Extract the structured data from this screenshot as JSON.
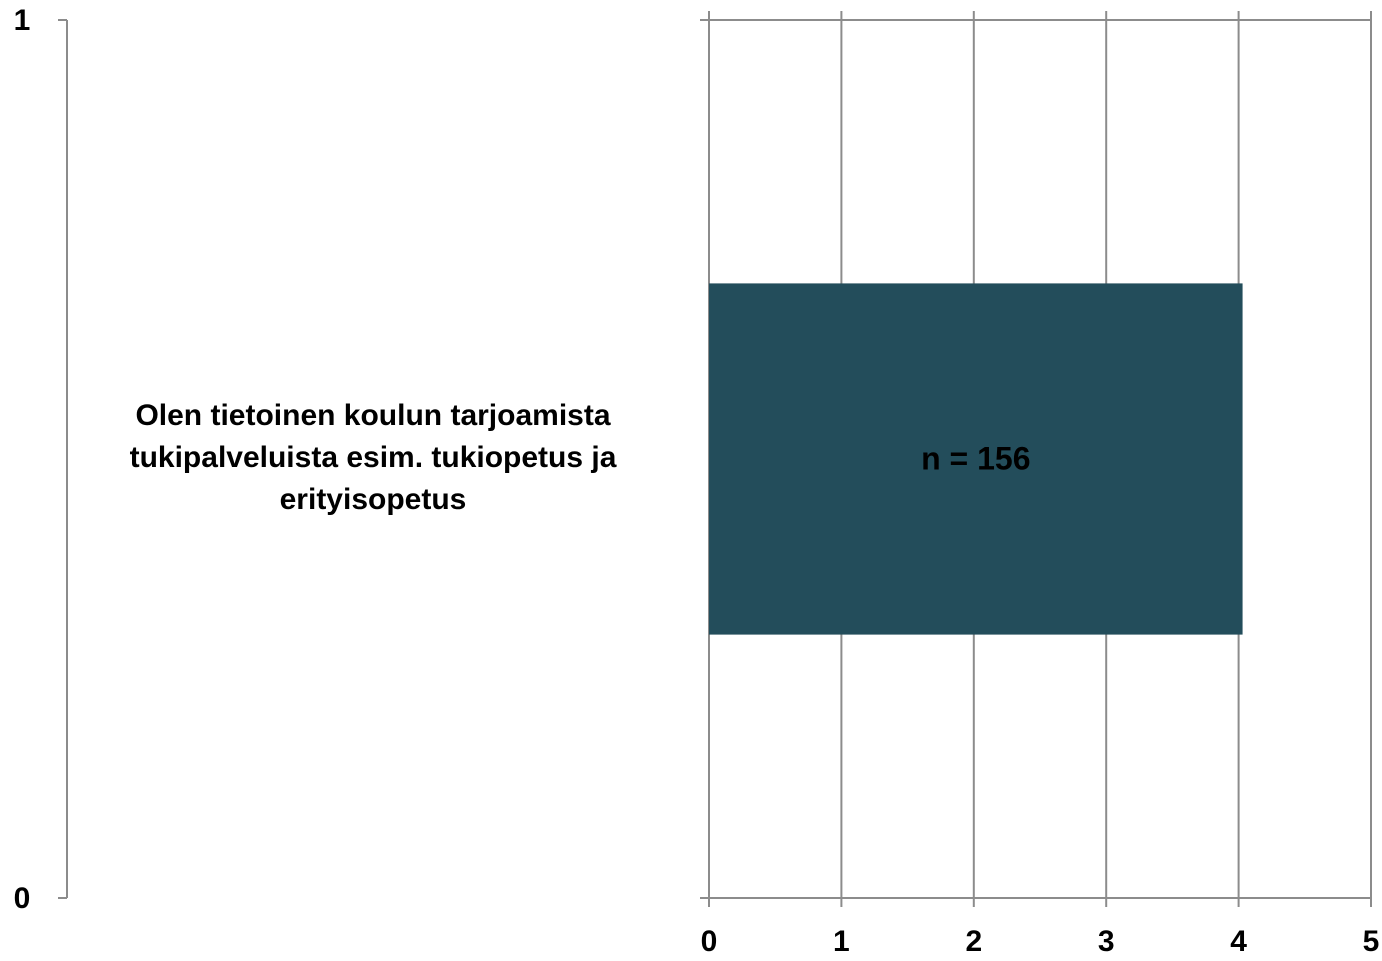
{
  "chart_data": {
    "type": "barh",
    "categories": [
      "Olen tietoinen  koulun tarjoamista tukipalveluista esim. tukiopetus ja erityisopetus"
    ],
    "values": [
      4.03
    ],
    "color": "#234D5B",
    "xlim": [
      0,
      5
    ],
    "xticks": [
      0,
      1,
      2,
      3,
      4,
      5
    ],
    "y2lim": [
      0,
      1
    ],
    "y2ticks": [
      0,
      1
    ],
    "annotations": [
      "n = 156"
    ],
    "grid": true
  }
}
